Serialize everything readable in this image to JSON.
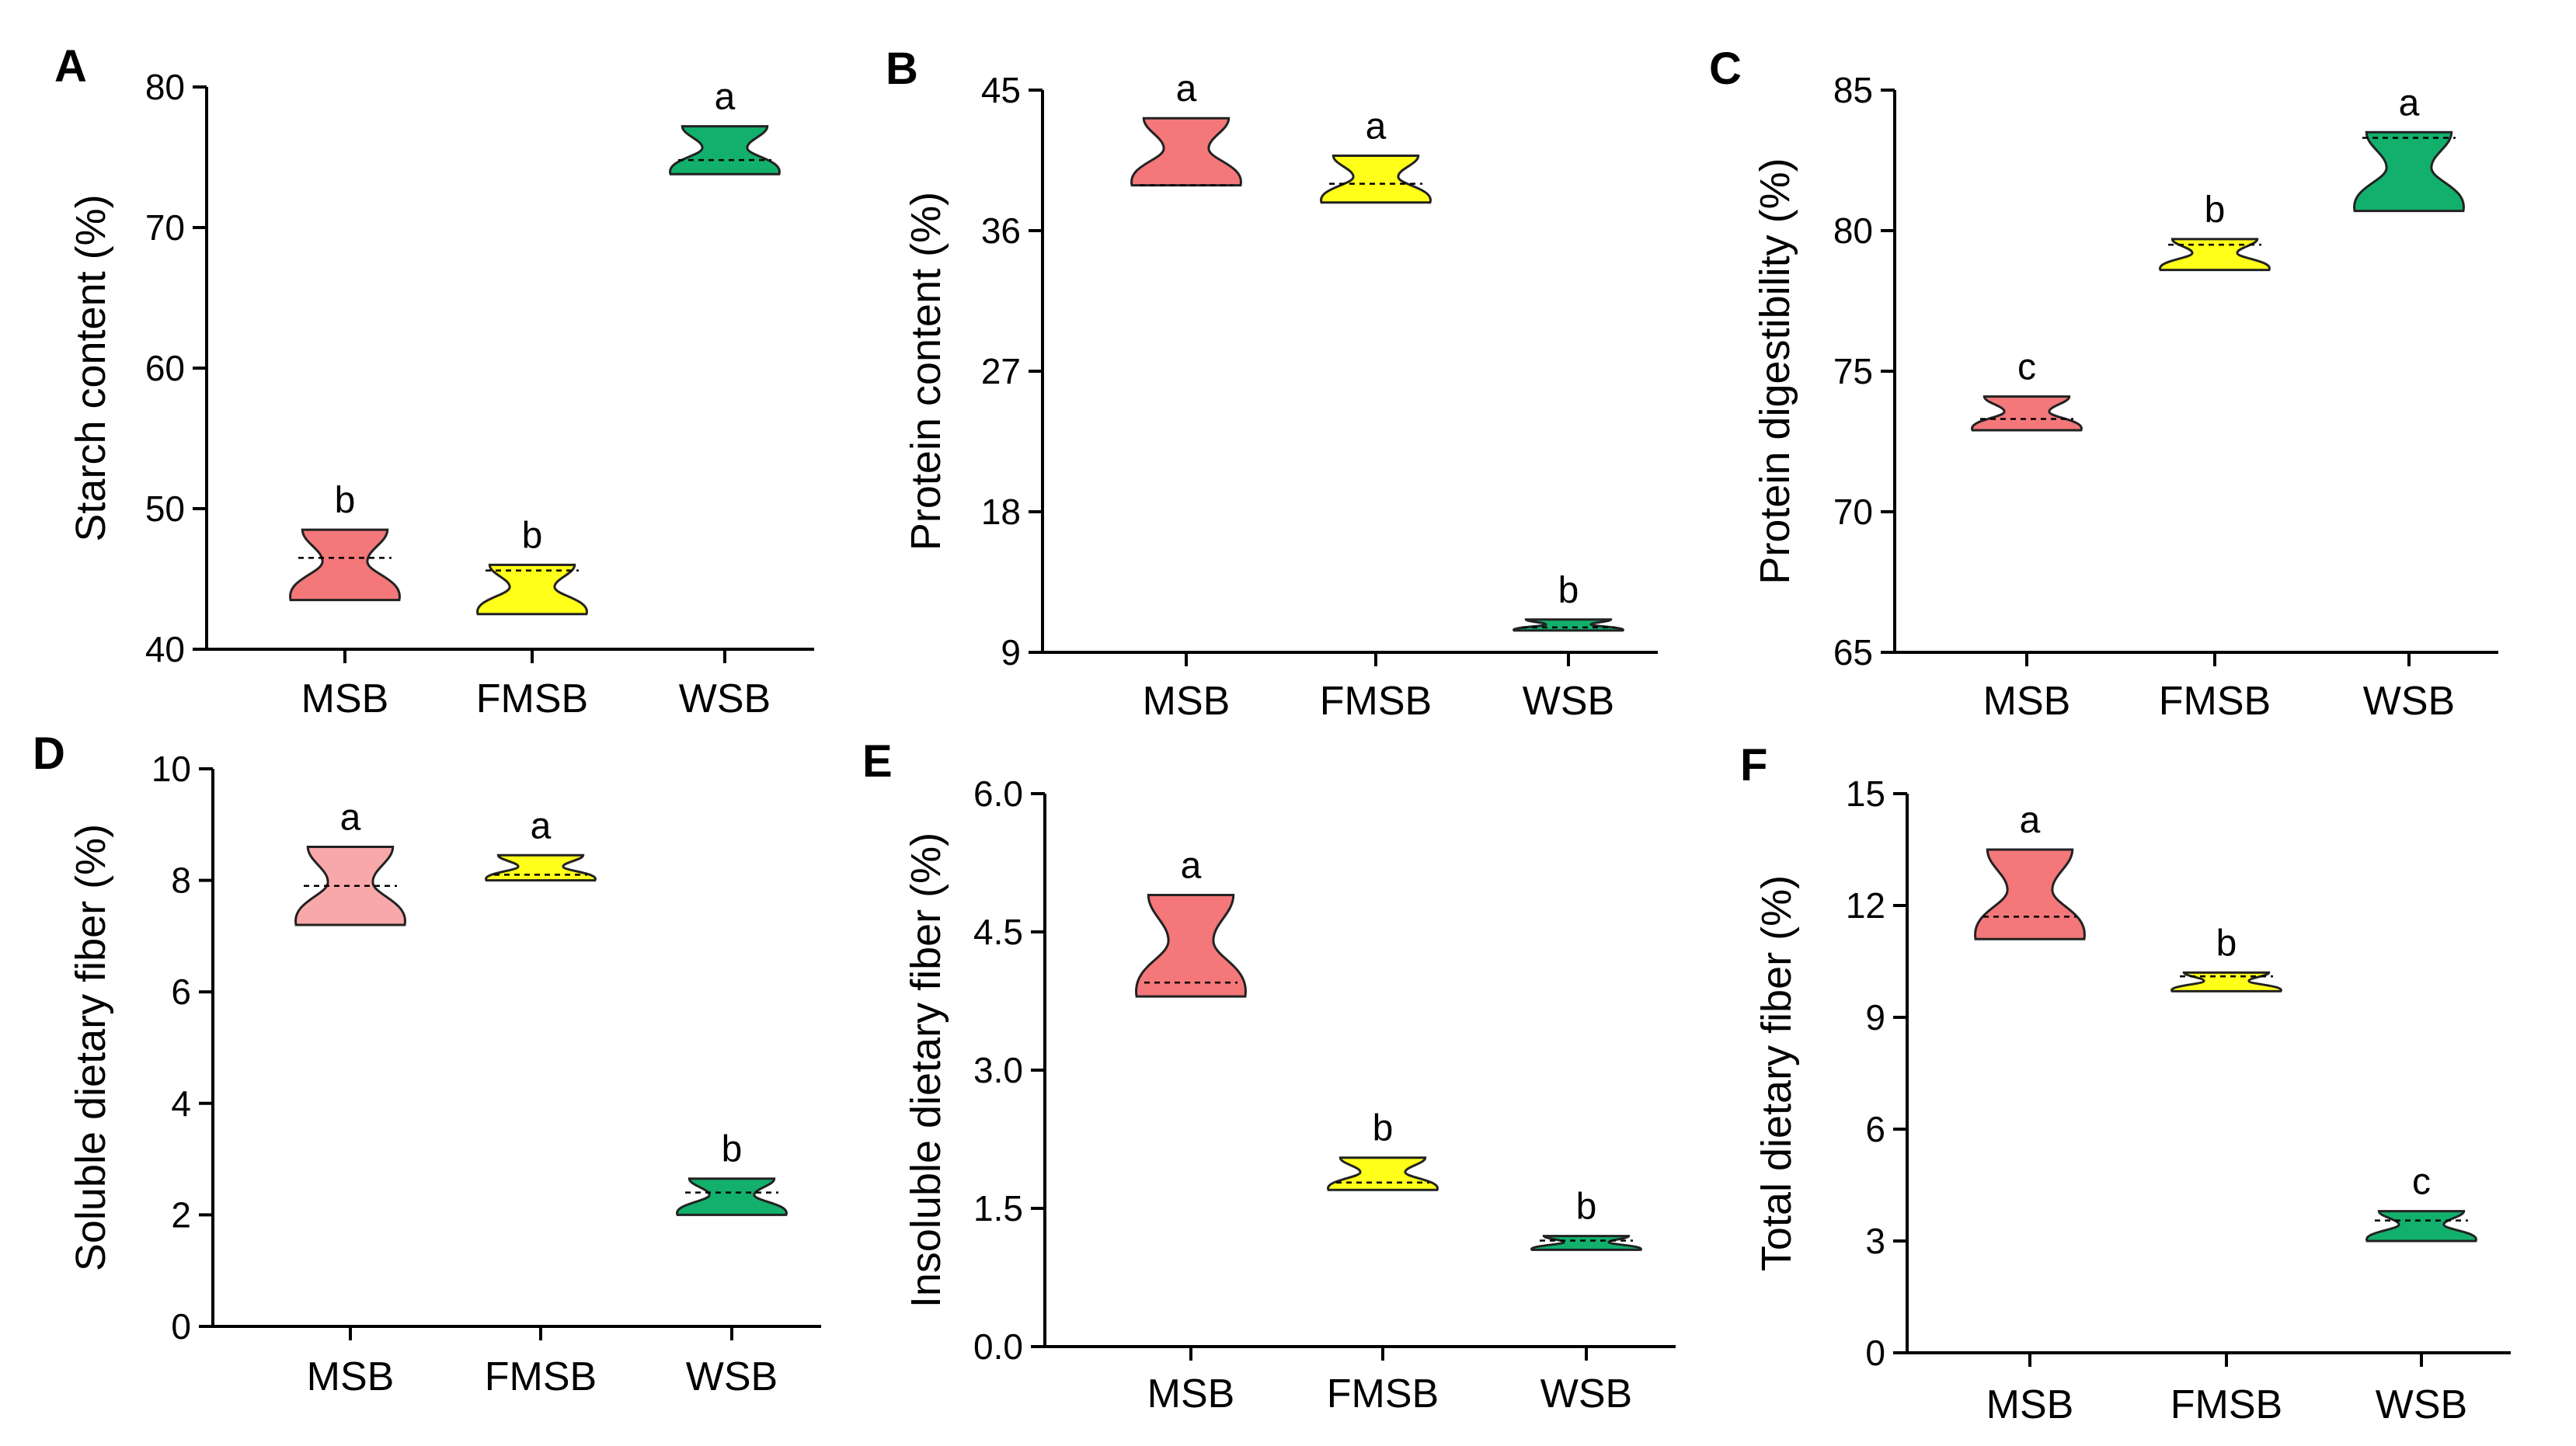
{
  "chart_data": [
    {
      "type": "violin",
      "panel": "A",
      "ylabel": "Starch content (%)",
      "ylim": [
        40,
        80
      ],
      "yticks": [
        "40",
        "50",
        "60",
        "70",
        "80"
      ],
      "categories": [
        "MSB",
        "FMSB",
        "WSB"
      ],
      "series": [
        {
          "name": "MSB",
          "min": 43.5,
          "max": 48.5,
          "median": 46.5,
          "sig": "b",
          "color": "#f4777a"
        },
        {
          "name": "FMSB",
          "min": 42.5,
          "max": 46.0,
          "median": 45.6,
          "sig": "b",
          "color": "#ffff1a"
        },
        {
          "name": "WSB",
          "min": 73.8,
          "max": 77.2,
          "median": 74.8,
          "sig": "a",
          "color": "#12b06c"
        }
      ]
    },
    {
      "type": "violin",
      "panel": "B",
      "ylabel": "Protein content (%)",
      "ylim": [
        9,
        45
      ],
      "yticks": [
        "9",
        "18",
        "27",
        "36",
        "45"
      ],
      "categories": [
        "MSB",
        "FMSB",
        "WSB"
      ],
      "series": [
        {
          "name": "MSB",
          "min": 38.9,
          "max": 43.2,
          "median": 38.9,
          "sig": "a",
          "color": "#f4777a"
        },
        {
          "name": "FMSB",
          "min": 37.8,
          "max": 40.8,
          "median": 39.0,
          "sig": "a",
          "color": "#ffff1a"
        },
        {
          "name": "WSB",
          "min": 10.4,
          "max": 11.1,
          "median": 10.6,
          "sig": "b",
          "color": "#12b06c"
        }
      ]
    },
    {
      "type": "violin",
      "panel": "C",
      "ylabel": "Protein digestibility (%)",
      "ylim": [
        65,
        85
      ],
      "yticks": [
        "65",
        "70",
        "75",
        "80",
        "85"
      ],
      "categories": [
        "MSB",
        "FMSB",
        "WSB"
      ],
      "series": [
        {
          "name": "MSB",
          "min": 72.9,
          "max": 74.1,
          "median": 73.3,
          "sig": "c",
          "color": "#f4777a"
        },
        {
          "name": "FMSB",
          "min": 78.6,
          "max": 79.7,
          "median": 79.5,
          "sig": "b",
          "color": "#ffff1a"
        },
        {
          "name": "WSB",
          "min": 80.7,
          "max": 83.5,
          "median": 83.3,
          "sig": "a",
          "color": "#12b06c"
        }
      ]
    },
    {
      "type": "violin",
      "panel": "D",
      "ylabel": "Soluble dietary fiber (%)",
      "ylim": [
        0,
        10
      ],
      "yticks": [
        "0",
        "2",
        "4",
        "6",
        "8",
        "10"
      ],
      "categories": [
        "MSB",
        "FMSB",
        "WSB"
      ],
      "series": [
        {
          "name": "MSB",
          "min": 7.2,
          "max": 8.6,
          "median": 7.9,
          "sig": "a",
          "color": "#f9a8aa"
        },
        {
          "name": "FMSB",
          "min": 8.0,
          "max": 8.45,
          "median": 8.1,
          "sig": "a",
          "color": "#ffff1a"
        },
        {
          "name": "WSB",
          "min": 2.0,
          "max": 2.65,
          "median": 2.4,
          "sig": "b",
          "color": "#12b06c"
        }
      ]
    },
    {
      "type": "violin",
      "panel": "E",
      "ylabel": "Insoluble dietary fiber (%)",
      "ylim": [
        0,
        6
      ],
      "yticks": [
        "0.0",
        "1.5",
        "3.0",
        "4.5",
        "6.0"
      ],
      "categories": [
        "MSB",
        "FMSB",
        "WSB"
      ],
      "series": [
        {
          "name": "MSB",
          "min": 3.8,
          "max": 4.9,
          "median": 3.95,
          "sig": "a",
          "color": "#f4777a"
        },
        {
          "name": "FMSB",
          "min": 1.7,
          "max": 2.05,
          "median": 1.78,
          "sig": "b",
          "color": "#ffff1a"
        },
        {
          "name": "WSB",
          "min": 1.05,
          "max": 1.2,
          "median": 1.15,
          "sig": "b",
          "color": "#12b06c"
        }
      ]
    },
    {
      "type": "violin",
      "panel": "F",
      "ylabel": "Total dietary fiber (%)",
      "ylim": [
        0,
        15
      ],
      "yticks": [
        "0",
        "3",
        "6",
        "9",
        "12",
        "15"
      ],
      "categories": [
        "MSB",
        "FMSB",
        "WSB"
      ],
      "series": [
        {
          "name": "MSB",
          "min": 11.1,
          "max": 13.5,
          "median": 11.7,
          "sig": "a",
          "color": "#f4777a"
        },
        {
          "name": "FMSB",
          "min": 9.7,
          "max": 10.2,
          "median": 10.1,
          "sig": "b",
          "color": "#ffff1a"
        },
        {
          "name": "WSB",
          "min": 3.0,
          "max": 3.8,
          "median": 3.55,
          "sig": "c",
          "color": "#12b06c"
        }
      ]
    }
  ]
}
